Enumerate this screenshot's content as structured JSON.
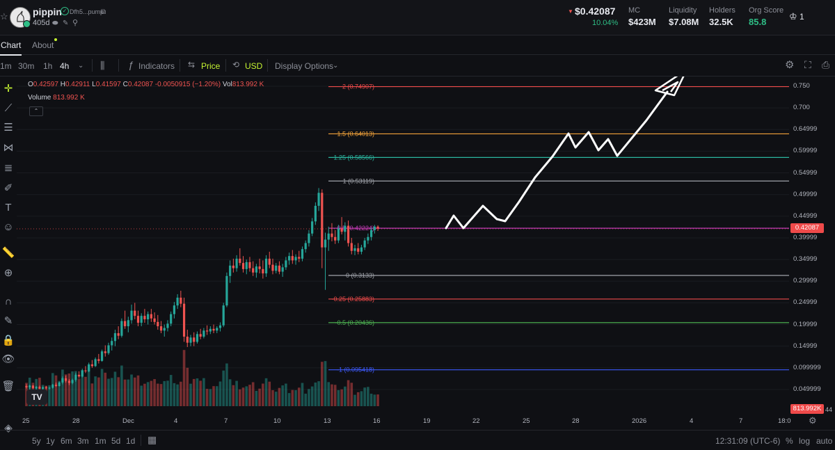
{
  "token": {
    "name": "pippin",
    "address": "Dfh5...pump",
    "age": "405d",
    "price": "$0.42087",
    "change": "10.04%",
    "stats": [
      {
        "label": "MC",
        "value": "$423M"
      },
      {
        "label": "Liquidity",
        "value": "$7.08M"
      },
      {
        "label": "Holders",
        "value": "32.5K"
      },
      {
        "label": "Org Score",
        "value": "85.8"
      }
    ],
    "crown_count": "1"
  },
  "tabs": [
    {
      "label": "Chart",
      "active": true
    },
    {
      "label": "About",
      "active": false
    }
  ],
  "toolbar": {
    "intervals": [
      "1m",
      "30m",
      "1h",
      "4h"
    ],
    "active_interval": "4h",
    "indicators": "Indicators",
    "price": "Price",
    "currency": "USD",
    "display": "Display Options"
  },
  "ohlc": {
    "o_label": "O",
    "o": "0.42597",
    "h_label": "H",
    "h": "0.42911",
    "l_label": "L",
    "l": "0.41597",
    "c_label": "C",
    "c": "0.42087",
    "change": "-0.0050915 (−1.20%)",
    "vol_label": "Vol",
    "vol": "813.992 K",
    "volume_label": "Volume",
    "volume_value": "813.992 K"
  },
  "fib_levels": [
    {
      "label": "2 (0.74907)",
      "price": 0.74907,
      "color": "#ef4a4a"
    },
    {
      "label": "1.5 (0.64013)",
      "price": 0.64013,
      "color": "#f3a33a"
    },
    {
      "label": "1.25 (0.58566)",
      "price": 0.58566,
      "color": "#2bb7a0"
    },
    {
      "label": "1 (0.53119)",
      "price": 0.53119,
      "color": "#a0a3aa"
    },
    {
      "label": "0.5 (0.42224)",
      "price": 0.42224,
      "color": "#c03ab5"
    },
    {
      "label": "0 (0.3133)",
      "price": 0.3133,
      "color": "#a0a3aa"
    },
    {
      "label": "-0.25 (0.25883)",
      "price": 0.25883,
      "color": "#ef4a4a"
    },
    {
      "label": "-0.5 (0.20436)",
      "price": 0.20436,
      "color": "#4caf50"
    },
    {
      "label": "-1 (0.095418)",
      "price": 0.095418,
      "color": "#3d5afe"
    }
  ],
  "price_axis": {
    "ticks": [
      "0.750",
      "0.700",
      "0.64999",
      "0.59999",
      "0.54999",
      "0.49999",
      "0.44999",
      "0.39999",
      "0.34999",
      "0.29999",
      "0.24999",
      "0.19999",
      "0.14999",
      "0.099999",
      "0.049999"
    ],
    "current_price": "0.42087",
    "volume_tag": "813.992K",
    "volume_tick": "44"
  },
  "time_axis": {
    "ticks": [
      "25",
      "28",
      "Dec",
      "4",
      "7",
      "10",
      "13",
      "16",
      "19",
      "22",
      "25",
      "28",
      "2026",
      "4",
      "7",
      "18:0"
    ]
  },
  "bottom_bar": {
    "ranges": [
      "5y",
      "1y",
      "6m",
      "3m",
      "1m",
      "5d",
      "1d"
    ],
    "clock": "12:31:09 (UTC-6)",
    "pct": "%",
    "log": "log",
    "auto": "auto"
  },
  "chart_data": {
    "type": "candlestick",
    "interval": "4h",
    "y_range": [
      0.02,
      0.79
    ],
    "candles": [
      [
        0.058,
        0.062,
        0.052,
        0.055
      ],
      [
        0.055,
        0.061,
        0.05,
        0.059
      ],
      [
        0.059,
        0.06,
        0.052,
        0.053
      ],
      [
        0.053,
        0.058,
        0.05,
        0.056
      ],
      [
        0.056,
        0.059,
        0.051,
        0.052
      ],
      [
        0.052,
        0.057,
        0.049,
        0.055
      ],
      [
        0.055,
        0.058,
        0.051,
        0.053
      ],
      [
        0.053,
        0.056,
        0.05,
        0.054
      ],
      [
        0.054,
        0.063,
        0.052,
        0.061
      ],
      [
        0.061,
        0.066,
        0.056,
        0.058
      ],
      [
        0.058,
        0.068,
        0.057,
        0.066
      ],
      [
        0.066,
        0.08,
        0.062,
        0.076
      ],
      [
        0.076,
        0.082,
        0.066,
        0.07
      ],
      [
        0.07,
        0.074,
        0.06,
        0.065
      ],
      [
        0.065,
        0.075,
        0.062,
        0.072
      ],
      [
        0.072,
        0.088,
        0.068,
        0.084
      ],
      [
        0.084,
        0.092,
        0.076,
        0.08
      ],
      [
        0.08,
        0.098,
        0.078,
        0.094
      ],
      [
        0.094,
        0.104,
        0.088,
        0.092
      ],
      [
        0.092,
        0.112,
        0.09,
        0.108
      ],
      [
        0.108,
        0.118,
        0.1,
        0.104
      ],
      [
        0.104,
        0.124,
        0.102,
        0.12
      ],
      [
        0.12,
        0.132,
        0.11,
        0.116
      ],
      [
        0.116,
        0.142,
        0.114,
        0.138
      ],
      [
        0.138,
        0.152,
        0.126,
        0.134
      ],
      [
        0.134,
        0.158,
        0.13,
        0.152
      ],
      [
        0.152,
        0.17,
        0.14,
        0.162
      ],
      [
        0.162,
        0.188,
        0.15,
        0.18
      ],
      [
        0.18,
        0.196,
        0.166,
        0.174
      ],
      [
        0.174,
        0.214,
        0.17,
        0.208
      ],
      [
        0.208,
        0.232,
        0.19,
        0.196
      ],
      [
        0.196,
        0.218,
        0.182,
        0.21
      ],
      [
        0.21,
        0.246,
        0.202,
        0.232
      ],
      [
        0.232,
        0.25,
        0.212,
        0.22
      ],
      [
        0.22,
        0.232,
        0.196,
        0.204
      ],
      [
        0.204,
        0.226,
        0.196,
        0.22
      ],
      [
        0.22,
        0.236,
        0.204,
        0.212
      ],
      [
        0.212,
        0.23,
        0.2,
        0.224
      ],
      [
        0.224,
        0.236,
        0.206,
        0.214
      ],
      [
        0.214,
        0.228,
        0.2,
        0.206
      ],
      [
        0.206,
        0.222,
        0.188,
        0.196
      ],
      [
        0.196,
        0.208,
        0.18,
        0.186
      ],
      [
        0.186,
        0.2,
        0.172,
        0.192
      ],
      [
        0.192,
        0.21,
        0.184,
        0.202
      ],
      [
        0.202,
        0.23,
        0.196,
        0.224
      ],
      [
        0.224,
        0.252,
        0.214,
        0.244
      ],
      [
        0.244,
        0.27,
        0.236,
        0.262
      ],
      [
        0.262,
        0.278,
        0.24,
        0.248
      ],
      [
        0.248,
        0.262,
        0.16,
        0.172
      ],
      [
        0.172,
        0.188,
        0.148,
        0.158
      ],
      [
        0.158,
        0.176,
        0.15,
        0.17
      ],
      [
        0.17,
        0.182,
        0.15,
        0.16
      ],
      [
        0.16,
        0.184,
        0.156,
        0.178
      ],
      [
        0.178,
        0.19,
        0.166,
        0.172
      ],
      [
        0.172,
        0.192,
        0.168,
        0.186
      ],
      [
        0.186,
        0.198,
        0.176,
        0.184
      ],
      [
        0.184,
        0.196,
        0.178,
        0.19
      ],
      [
        0.19,
        0.2,
        0.18,
        0.186
      ],
      [
        0.186,
        0.196,
        0.18,
        0.192
      ],
      [
        0.192,
        0.205,
        0.184,
        0.198
      ],
      [
        0.198,
        0.25,
        0.194,
        0.244
      ],
      [
        0.244,
        0.32,
        0.24,
        0.312
      ],
      [
        0.312,
        0.348,
        0.296,
        0.336
      ],
      [
        0.336,
        0.352,
        0.32,
        0.33
      ],
      [
        0.33,
        0.36,
        0.322,
        0.352
      ],
      [
        0.352,
        0.376,
        0.336,
        0.342
      ],
      [
        0.342,
        0.358,
        0.32,
        0.328
      ],
      [
        0.328,
        0.35,
        0.316,
        0.344
      ],
      [
        0.344,
        0.356,
        0.322,
        0.33
      ],
      [
        0.33,
        0.346,
        0.312,
        0.32
      ],
      [
        0.32,
        0.34,
        0.308,
        0.334
      ],
      [
        0.334,
        0.352,
        0.318,
        0.328
      ],
      [
        0.328,
        0.348,
        0.306,
        0.318
      ],
      [
        0.318,
        0.36,
        0.31,
        0.352
      ],
      [
        0.352,
        0.368,
        0.33,
        0.338
      ],
      [
        0.338,
        0.352,
        0.316,
        0.324
      ],
      [
        0.324,
        0.342,
        0.318,
        0.336
      ],
      [
        0.336,
        0.346,
        0.316,
        0.322
      ],
      [
        0.322,
        0.34,
        0.31,
        0.332
      ],
      [
        0.332,
        0.356,
        0.326,
        0.348
      ],
      [
        0.348,
        0.366,
        0.338,
        0.358
      ],
      [
        0.358,
        0.372,
        0.34,
        0.348
      ],
      [
        0.348,
        0.362,
        0.338,
        0.356
      ],
      [
        0.356,
        0.37,
        0.344,
        0.352
      ],
      [
        0.352,
        0.38,
        0.346,
        0.374
      ],
      [
        0.374,
        0.394,
        0.366,
        0.388
      ],
      [
        0.388,
        0.418,
        0.38,
        0.41
      ],
      [
        0.41,
        0.446,
        0.404,
        0.438
      ],
      [
        0.438,
        0.482,
        0.43,
        0.474
      ],
      [
        0.474,
        0.515,
        0.462,
        0.504
      ],
      [
        0.504,
        0.512,
        0.33,
        0.378
      ],
      [
        0.378,
        0.412,
        0.28,
        0.396
      ],
      [
        0.396,
        0.426,
        0.37,
        0.41
      ],
      [
        0.41,
        0.434,
        0.392,
        0.402
      ],
      [
        0.402,
        0.418,
        0.386,
        0.394
      ],
      [
        0.394,
        0.43,
        0.388,
        0.422
      ],
      [
        0.422,
        0.448,
        0.408,
        0.414
      ],
      [
        0.414,
        0.436,
        0.394,
        0.428
      ],
      [
        0.428,
        0.44,
        0.38,
        0.388
      ],
      [
        0.388,
        0.4,
        0.362,
        0.37
      ],
      [
        0.37,
        0.384,
        0.36,
        0.376
      ],
      [
        0.376,
        0.388,
        0.362,
        0.368
      ],
      [
        0.368,
        0.384,
        0.362,
        0.378
      ],
      [
        0.378,
        0.4,
        0.372,
        0.394
      ],
      [
        0.394,
        0.41,
        0.386,
        0.402
      ],
      [
        0.402,
        0.424,
        0.394,
        0.418
      ],
      [
        0.418,
        0.43,
        0.41,
        0.426
      ],
      [
        0.426,
        0.429,
        0.416,
        0.421
      ]
    ],
    "volume_tag": "813.992K"
  }
}
